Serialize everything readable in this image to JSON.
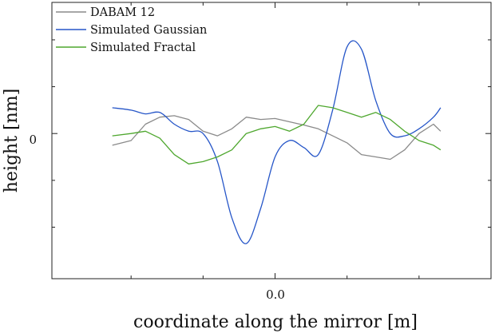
{
  "chart_data": {
    "type": "line",
    "title": "",
    "xlabel": "coordinate along the mirror [m]",
    "ylabel": "height [nm]",
    "x_tick_labels": [
      "0.0"
    ],
    "y_tick_labels": [
      "0"
    ],
    "x_ticks": [
      0.0
    ],
    "y_ticks": [
      0
    ],
    "xlim": [
      -1.55,
      1.5
    ],
    "ylim": [
      -3.1,
      2.8
    ],
    "grid": false,
    "legend_position": "top-left",
    "colors": {
      "DABAM 12": "#8a8a8a",
      "Simulated Gaussian": "#2656c8",
      "Simulated Fractal": "#4ea72e"
    },
    "series": [
      {
        "name": "DABAM 12",
        "color": "#8a8a8a",
        "x": [
          -1.13,
          -1.0,
          -0.9,
          -0.8,
          -0.7,
          -0.6,
          -0.5,
          -0.4,
          -0.3,
          -0.2,
          -0.1,
          0.0,
          0.1,
          0.2,
          0.3,
          0.4,
          0.5,
          0.6,
          0.7,
          0.8,
          0.9,
          1.0,
          1.1,
          1.15
        ],
        "y": [
          -0.25,
          -0.15,
          0.2,
          0.35,
          0.38,
          0.3,
          0.05,
          -0.05,
          0.1,
          0.35,
          0.3,
          0.32,
          0.25,
          0.18,
          0.1,
          -0.05,
          -0.2,
          -0.45,
          -0.5,
          -0.55,
          -0.35,
          0.0,
          0.2,
          0.05
        ]
      },
      {
        "name": "Simulated Gaussian",
        "color": "#2656c8",
        "x": [
          -1.13,
          -1.0,
          -0.9,
          -0.8,
          -0.7,
          -0.6,
          -0.5,
          -0.4,
          -0.3,
          -0.2,
          -0.1,
          0.0,
          0.1,
          0.2,
          0.3,
          0.4,
          0.5,
          0.6,
          0.7,
          0.8,
          0.9,
          1.0,
          1.1,
          1.15
        ],
        "y": [
          0.55,
          0.5,
          0.42,
          0.45,
          0.2,
          0.05,
          0.0,
          -0.6,
          -1.8,
          -2.35,
          -1.6,
          -0.5,
          -0.15,
          -0.3,
          -0.45,
          0.5,
          1.85,
          1.8,
          0.7,
          0.0,
          -0.05,
          0.1,
          0.35,
          0.55
        ]
      },
      {
        "name": "Simulated Fractal",
        "color": "#4ea72e",
        "x": [
          -1.13,
          -1.0,
          -0.9,
          -0.8,
          -0.7,
          -0.6,
          -0.5,
          -0.4,
          -0.3,
          -0.2,
          -0.1,
          0.0,
          0.1,
          0.2,
          0.3,
          0.4,
          0.5,
          0.6,
          0.7,
          0.8,
          0.9,
          1.0,
          1.1,
          1.15
        ],
        "y": [
          -0.05,
          0.0,
          0.05,
          -0.1,
          -0.45,
          -0.65,
          -0.6,
          -0.5,
          -0.35,
          0.0,
          0.1,
          0.15,
          0.05,
          0.2,
          0.6,
          0.55,
          0.45,
          0.35,
          0.45,
          0.3,
          0.05,
          -0.15,
          -0.25,
          -0.35
        ]
      }
    ]
  }
}
